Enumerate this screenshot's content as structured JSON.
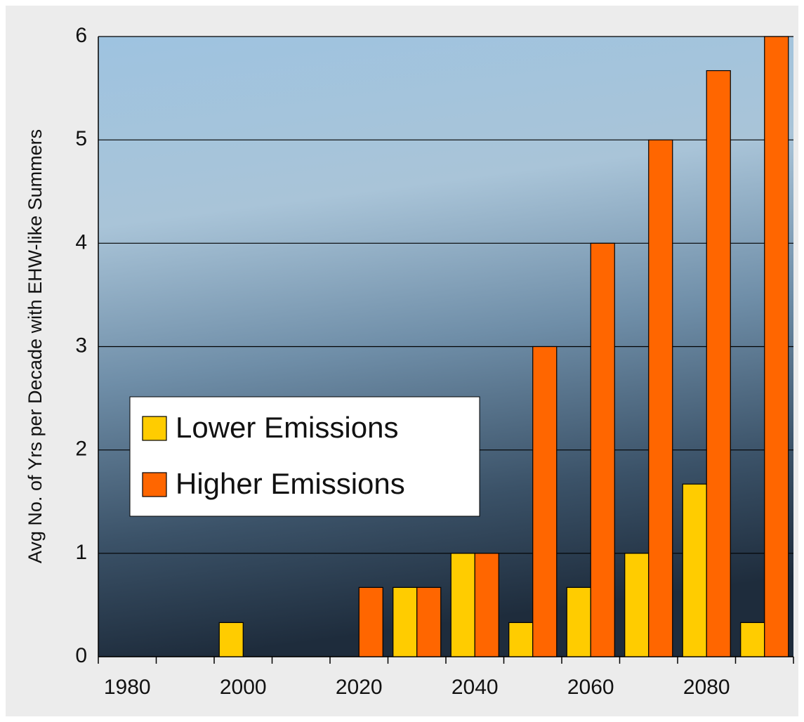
{
  "chart_data": {
    "type": "bar",
    "y_label": "Avg No. of Yrs per Decade with EHW-like Summers",
    "categories": [
      "1980",
      null,
      "2000",
      null,
      "2020",
      null,
      "2040",
      null,
      "2060",
      null,
      "2080",
      null
    ],
    "series": [
      {
        "name": "Lower Emissions",
        "color": "#ffcc00",
        "values": [
          0,
          0,
          0.33,
          0,
          0,
          0.67,
          1,
          0.33,
          0.67,
          1,
          1.67,
          0.33
        ]
      },
      {
        "name": "Higher Emissions",
        "color": "#ff6600",
        "values": [
          0,
          0,
          0,
          0,
          0.67,
          0.67,
          1,
          3,
          4,
          5,
          5.67,
          6
        ]
      }
    ],
    "ylim": [
      0,
      6
    ],
    "yticks": [
      0,
      1,
      2,
      3,
      4,
      5,
      6
    ],
    "grid": true
  }
}
